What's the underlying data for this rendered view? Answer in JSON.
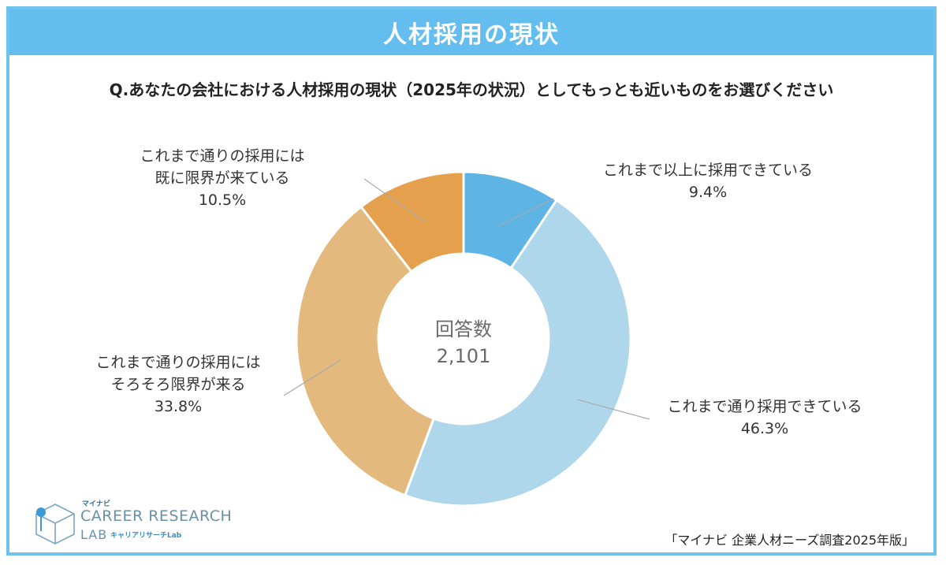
{
  "header": {
    "title": "人材採用の現状"
  },
  "question": "Q.あなたの会社における人材採用の現状（2025年の状況）としてもっとも近いものをお選びください",
  "chart_data": {
    "type": "pie",
    "donut": true,
    "center_label": [
      "回答数",
      "2,101"
    ],
    "slices": [
      {
        "label": [
          "これまで以上に採用できている"
        ],
        "value": 9.4,
        "value_text": "9.4%",
        "color": "#5fb4e6"
      },
      {
        "label": [
          "これまで通り採用できている"
        ],
        "value": 46.3,
        "value_text": "46.3%",
        "color": "#aed7ec"
      },
      {
        "label": [
          "これまで通りの採用には",
          "そろそろ限界が来る"
        ],
        "value": 33.8,
        "value_text": "33.8%",
        "color": "#e3b97d"
      },
      {
        "label": [
          "これまで通りの採用には",
          "既に限界が来ている"
        ],
        "value": 10.5,
        "value_text": "10.5%",
        "color": "#e5a04e"
      }
    ]
  },
  "logo": {
    "small": "マイナビ",
    "main": "CAREER RESEARCH",
    "sub": "LAB",
    "jp": "キャリアリサーチLab"
  },
  "source": "「マイナビ 企業人材ニーズ調査2025年版」"
}
